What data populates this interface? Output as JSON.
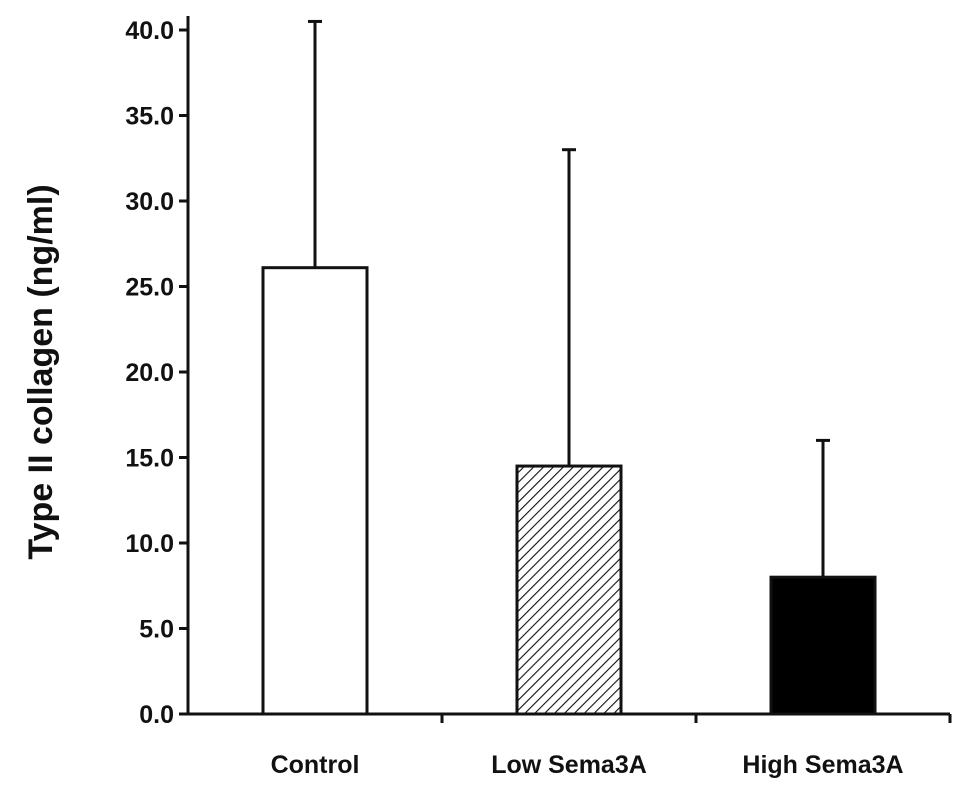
{
  "chart_data": {
    "type": "bar",
    "title": "",
    "xlabel": "",
    "ylabel": "Type II collagen (ng/ml)",
    "ylim": [
      0,
      40
    ],
    "yticks": [
      "0.0",
      "5.0",
      "10.0",
      "15.0",
      "20.0",
      "25.0",
      "30.0",
      "35.0",
      "40.0"
    ],
    "categories": [
      "Control",
      "Low Sema3A",
      "High Sema3A"
    ],
    "values": [
      26.1,
      14.5,
      8.0
    ],
    "error_upper": [
      40.5,
      33.0,
      16.0
    ],
    "bar_styles": [
      "white",
      "hatched",
      "black"
    ],
    "grid": false,
    "legend": "none"
  },
  "colors": {
    "ink": "#111111",
    "bar_black": "#000000",
    "bar_white": "#ffffff"
  }
}
